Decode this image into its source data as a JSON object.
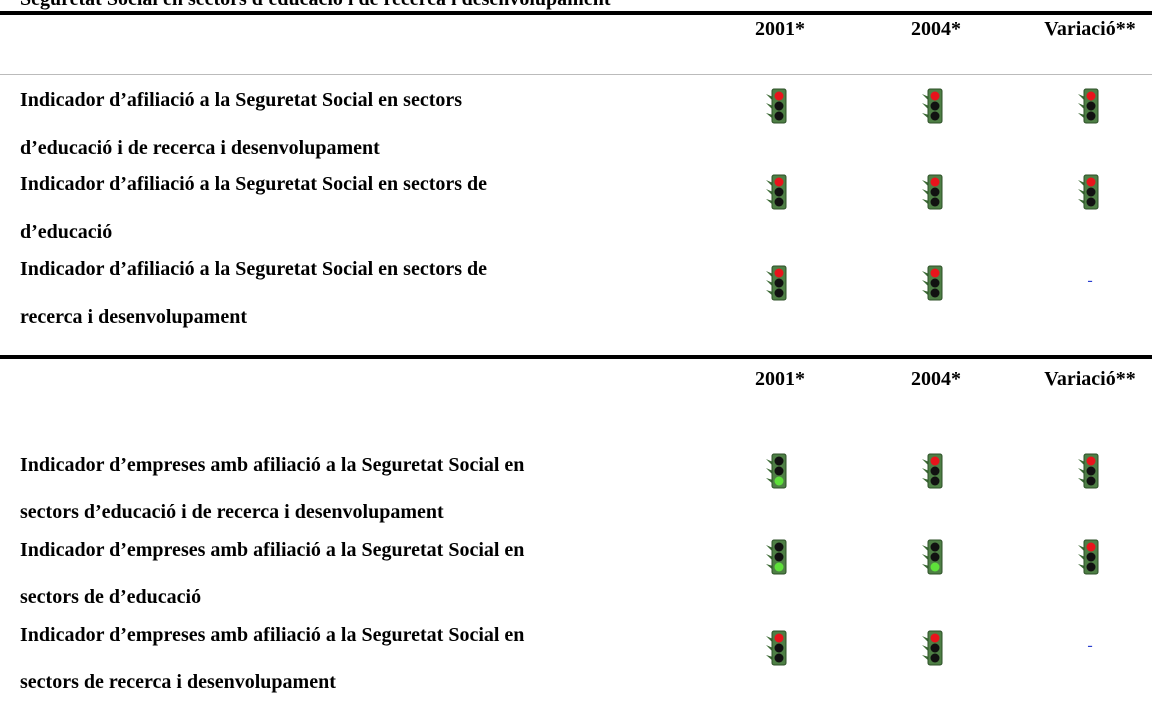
{
  "title": "Seguretat Social en sectors d'educació i de recerca i desenvolupament",
  "tables": [
    {
      "header": [
        "2001*",
        "2004*",
        "Variació**"
      ],
      "rows": [
        {
          "lines": [
            "Indicador d’afiliació a la Seguretat Social en sectors",
            "d’educació i de recerca i desenvolupament"
          ]
        },
        {
          "lines": [
            "Indicador d’afiliació a la Seguretat Social en sectors de",
            "d’educació"
          ]
        },
        {
          "lines": [
            "Indicador d’afiliació a la Seguretat Social en sectors de",
            "recerca i desenvolupament"
          ],
          "variacio": "-"
        }
      ]
    },
    {
      "header": [
        "2001*",
        "2004*",
        "Variació**"
      ],
      "rows": [
        {
          "lines": [
            "Indicador d’empreses amb afiliació a la Seguretat Social en",
            "sectors d’educació i de recerca i desenvolupament"
          ]
        },
        {
          "lines": [
            "Indicador d’empreses amb afiliació a la Seguretat Social en",
            "sectors de d’educació"
          ]
        },
        {
          "lines": [
            "Indicador d’empreses amb afiliació a la Seguretat Social en",
            "sectors de recerca i desenvolupament"
          ],
          "variacio": "-"
        }
      ]
    }
  ]
}
